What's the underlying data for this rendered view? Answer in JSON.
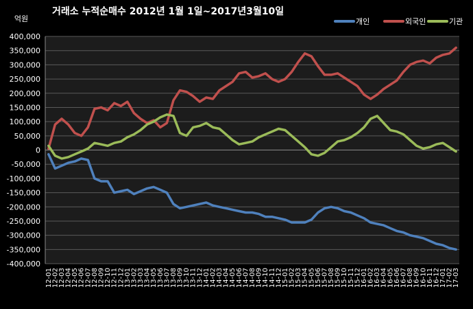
{
  "chart_data": {
    "type": "line",
    "title": "거래소 누적순매수 2012년 1월 1일~2017년3월10일",
    "unit_label": "억원",
    "ylim": [
      -400000,
      400000
    ],
    "y_ticks": [
      "400,000",
      "350,000",
      "300,000",
      "250,000",
      "200,000",
      "150,000",
      "100,000",
      "50,000",
      "0",
      "-50,000",
      "-100,000",
      "-150,000",
      "-200,000",
      "-250,000",
      "-300,000",
      "-350,000",
      "-400,000"
    ],
    "x_ticks": [
      "12-01",
      "12-02",
      "12-03",
      "12-04",
      "12-05",
      "12-06",
      "12-07",
      "12-08",
      "12-09",
      "12-10",
      "12-11",
      "12-12",
      "13-01",
      "13-02",
      "13-03",
      "13-04",
      "13-05",
      "13-06",
      "13-07",
      "13-08",
      "13-09",
      "13-10",
      "13-11",
      "13-12",
      "14-01",
      "14-02",
      "14-03",
      "14-04",
      "14-05",
      "14-06",
      "14-07",
      "14-08",
      "14-09",
      "14-10",
      "14-11",
      "14-12",
      "15-01",
      "15-02",
      "15-03",
      "15-04",
      "15-05",
      "15-06",
      "15-07",
      "15-08",
      "15-09",
      "15-10",
      "15-11",
      "15-12",
      "16-01",
      "16-02",
      "16-03",
      "16-04",
      "16-05",
      "16-06",
      "16-07",
      "16-08",
      "16-09",
      "16-10",
      "16-11",
      "16-12",
      "17-01",
      "17-02",
      "17-03"
    ],
    "grid": true,
    "legend_position": "top-right",
    "series": [
      {
        "name": "개인",
        "color": "#4f81bd",
        "values": [
          -15000,
          -65000,
          -55000,
          -45000,
          -40000,
          -30000,
          -35000,
          -100000,
          -110000,
          -110000,
          -150000,
          -145000,
          -140000,
          -155000,
          -145000,
          -135000,
          -130000,
          -140000,
          -150000,
          -190000,
          -205000,
          -200000,
          -195000,
          -190000,
          -185000,
          -195000,
          -200000,
          -205000,
          -210000,
          -215000,
          -220000,
          -220000,
          -225000,
          -235000,
          -235000,
          -240000,
          -245000,
          -255000,
          -255000,
          -255000,
          -245000,
          -220000,
          -205000,
          -200000,
          -205000,
          -215000,
          -220000,
          -230000,
          -240000,
          -255000,
          -260000,
          -265000,
          -275000,
          -285000,
          -290000,
          -300000,
          -305000,
          -310000,
          -320000,
          -330000,
          -335000,
          -345000,
          -350000
        ]
      },
      {
        "name": "외국인",
        "color": "#c0504d",
        "values": [
          5000,
          90000,
          110000,
          90000,
          60000,
          50000,
          80000,
          145000,
          150000,
          140000,
          165000,
          155000,
          170000,
          130000,
          110000,
          95000,
          105000,
          80000,
          95000,
          175000,
          210000,
          205000,
          190000,
          170000,
          185000,
          180000,
          210000,
          225000,
          240000,
          270000,
          275000,
          255000,
          260000,
          270000,
          250000,
          240000,
          250000,
          275000,
          310000,
          340000,
          330000,
          295000,
          265000,
          265000,
          270000,
          255000,
          240000,
          225000,
          195000,
          180000,
          195000,
          215000,
          230000,
          245000,
          275000,
          300000,
          310000,
          315000,
          305000,
          325000,
          335000,
          340000,
          360000
        ]
      },
      {
        "name": "기관",
        "color": "#9bbb59",
        "values": [
          15000,
          -20000,
          -30000,
          -25000,
          -15000,
          -5000,
          5000,
          25000,
          20000,
          15000,
          25000,
          30000,
          45000,
          55000,
          70000,
          90000,
          100000,
          115000,
          125000,
          120000,
          60000,
          50000,
          80000,
          85000,
          95000,
          80000,
          75000,
          55000,
          35000,
          20000,
          25000,
          30000,
          45000,
          55000,
          65000,
          75000,
          70000,
          50000,
          30000,
          10000,
          -15000,
          -20000,
          -10000,
          10000,
          30000,
          35000,
          45000,
          60000,
          80000,
          110000,
          120000,
          95000,
          70000,
          65000,
          55000,
          35000,
          15000,
          5000,
          10000,
          20000,
          25000,
          10000,
          -5000
        ]
      }
    ]
  }
}
